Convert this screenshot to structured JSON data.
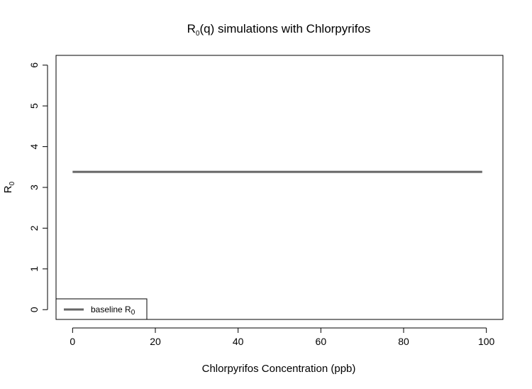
{
  "chart_data": {
    "type": "line",
    "title": {
      "main": "R",
      "sub": "0",
      "rest": "(q) simulations with Chlorpyrifos"
    },
    "xlabel": "Chlorpyrifos Concentration (ppb)",
    "ylabel": {
      "main": "R",
      "sub": "0"
    },
    "xlim": [
      -4,
      104
    ],
    "ylim": [
      -0.24,
      6.24
    ],
    "x_ticks": [
      0,
      20,
      40,
      60,
      80,
      100
    ],
    "y_ticks": [
      0,
      1,
      2,
      3,
      4,
      5,
      6
    ],
    "grid": false,
    "legend_position": "bottom-left",
    "series": [
      {
        "name": {
          "main": "baseline R",
          "sub": "0"
        },
        "color": "#666666",
        "x": [
          0,
          99
        ],
        "y": [
          3.38,
          3.38
        ]
      }
    ]
  }
}
